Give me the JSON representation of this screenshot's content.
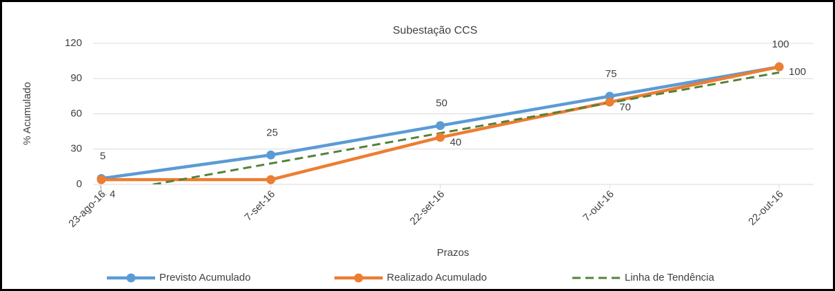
{
  "chart_data": {
    "type": "line",
    "title": "Subestação CCS",
    "x_label": "Prazos",
    "y_label": "% Acumulado",
    "categories": [
      "23-ago-16",
      "7-set-16",
      "22-set-16",
      "7-out-16",
      "22-out-16"
    ],
    "series": [
      {
        "name": "Previsto Acumulado",
        "color": "#5b9bd5",
        "values": [
          5,
          25,
          50,
          75,
          100
        ],
        "markers": true,
        "dashed": false,
        "labels": "above"
      },
      {
        "name": "Realizado Acumulado",
        "color": "#ed7d31",
        "values": [
          4,
          4,
          40,
          70,
          100
        ],
        "value_labels": [
          "4",
          null,
          "40",
          "70",
          "100"
        ],
        "markers": true,
        "dashed": false,
        "labels": "right"
      },
      {
        "name": "Linha de Tendência",
        "color": "#548235",
        "values": [
          -8,
          17.8,
          43.6,
          69.4,
          95.2
        ],
        "markers": false,
        "dashed": true
      }
    ],
    "ylim": [
      0,
      120
    ],
    "yticks": [
      0,
      30,
      60,
      90,
      120
    ],
    "grid": true,
    "legend": "bottom"
  }
}
